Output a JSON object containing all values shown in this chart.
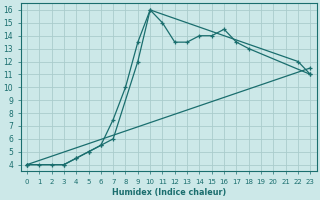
{
  "xlabel": "Humidex (Indice chaleur)",
  "bg_color": "#cce8e8",
  "grid_color": "#b0d0d0",
  "line_color": "#1a6e6e",
  "xlim": [
    -0.5,
    23.5
  ],
  "ylim": [
    3.5,
    16.5
  ],
  "xticks": [
    0,
    1,
    2,
    3,
    4,
    5,
    6,
    7,
    8,
    9,
    10,
    11,
    12,
    13,
    14,
    15,
    16,
    17,
    18,
    19,
    20,
    21,
    22,
    23
  ],
  "yticks": [
    4,
    5,
    6,
    7,
    8,
    9,
    10,
    11,
    12,
    13,
    14,
    15,
    16
  ],
  "line1_x": [
    0,
    1,
    2,
    3,
    4,
    5,
    6,
    7,
    8,
    9,
    10,
    11,
    12,
    13,
    14,
    15,
    16,
    17,
    18,
    23
  ],
  "line1_y": [
    4,
    4,
    4,
    4,
    4.5,
    5,
    5.5,
    7.5,
    10,
    13.5,
    16,
    15,
    13.5,
    13.5,
    14,
    14,
    14.5,
    13.5,
    13,
    11
  ],
  "line2_x": [
    0,
    3,
    4,
    5,
    6,
    7,
    9,
    10,
    22,
    23
  ],
  "line2_y": [
    4,
    4,
    4.5,
    5,
    5.5,
    6,
    12,
    16,
    12,
    11
  ],
  "line3_x": [
    0,
    23
  ],
  "line3_y": [
    4,
    11.5
  ]
}
